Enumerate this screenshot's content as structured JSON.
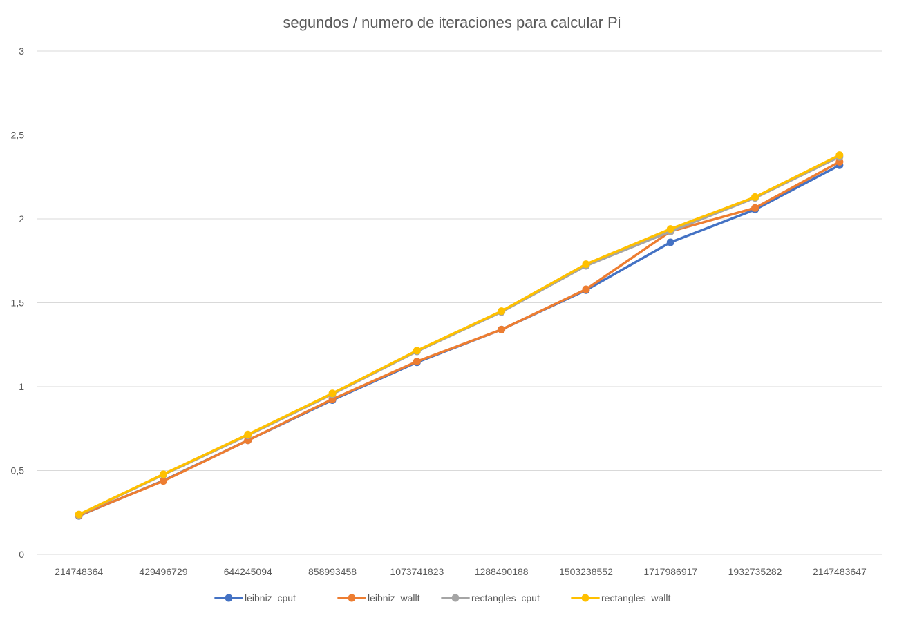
{
  "chart_data": {
    "type": "line",
    "title": "segundos / numero de iteraciones para calcular Pi",
    "xlabel": "",
    "ylabel": "",
    "categories": [
      "214748364",
      "429496729",
      "644245094",
      "858993458",
      "1073741823",
      "1288490188",
      "1503238552",
      "1717986917",
      "1932735282",
      "2147483647"
    ],
    "ylim": [
      0,
      3
    ],
    "yticks": [
      "0",
      "0,5",
      "1",
      "1,5",
      "2",
      "2,5",
      "3"
    ],
    "ytick_values": [
      0,
      0.5,
      1,
      1.5,
      2,
      2.5,
      3
    ],
    "grid": true,
    "legend_position": "bottom",
    "series": [
      {
        "name": "leibniz_cput",
        "color": "#4472C4",
        "values": [
          0.23,
          0.44,
          0.68,
          0.92,
          1.145,
          1.34,
          1.575,
          1.86,
          2.055,
          2.32
        ]
      },
      {
        "name": "leibniz_wallt",
        "color": "#ED7D31",
        "values": [
          0.232,
          0.438,
          0.68,
          0.925,
          1.15,
          1.34,
          1.58,
          1.925,
          2.065,
          2.34
        ]
      },
      {
        "name": "rectangles_cput",
        "color": "#A5A5A5",
        "values": [
          0.235,
          0.475,
          0.71,
          0.955,
          1.21,
          1.445,
          1.72,
          1.925,
          2.125,
          2.37
        ]
      },
      {
        "name": "rectangles_wallt",
        "color": "#FFC000",
        "values": [
          0.238,
          0.478,
          0.715,
          0.96,
          1.215,
          1.45,
          1.73,
          1.94,
          2.13,
          2.38
        ]
      }
    ]
  }
}
